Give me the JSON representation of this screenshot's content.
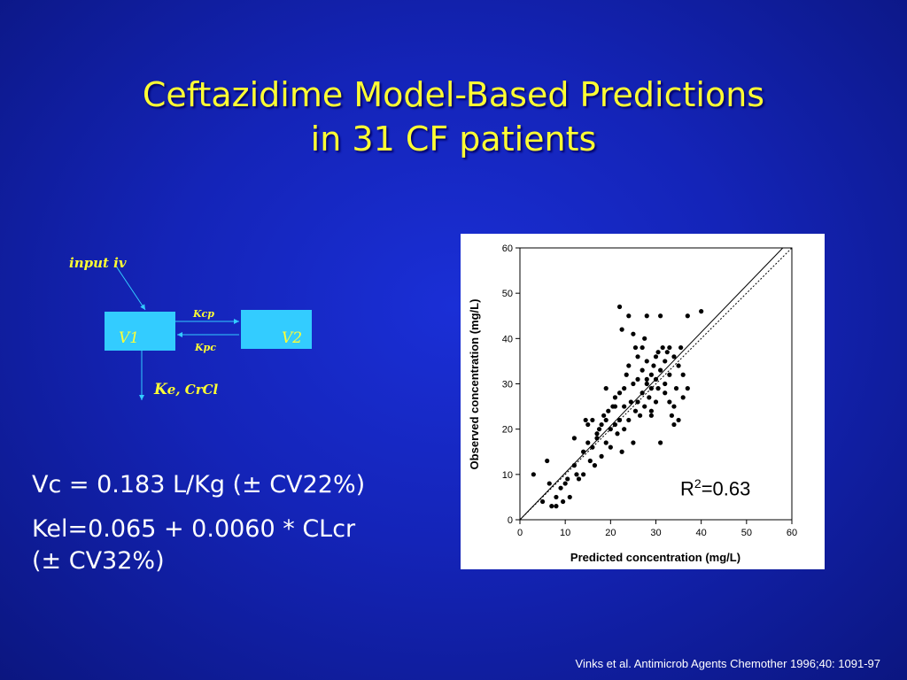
{
  "slide": {
    "title_line1": "Ceftazidime Model-Based Predictions",
    "title_line2": "in 31 CF patients",
    "citation": "Vinks et al. Antimicrob Agents Chemother 1996;40: 1091-97"
  },
  "diagram": {
    "input_label": "input iv",
    "compartment1": "V1",
    "compartment2": "V2",
    "rate_kcp": "Kcp",
    "rate_kpc": "Kpc",
    "elim_k": "K",
    "elim_rest": "e, CrCl",
    "box_color": "#33ccff",
    "text_color": "#ffff33"
  },
  "equations": {
    "vc": "Vc = 0.183 L/Kg (± CV22%)",
    "kel_line1": "Kel=0.065 + 0.0060 * CLcr",
    "kel_line2": "(± CV32%)"
  },
  "chart_data": {
    "type": "scatter",
    "xlabel": "Predicted concentration (mg/L)",
    "ylabel": "Observed concentration (mg/L)",
    "xlim": [
      0,
      60
    ],
    "ylim": [
      0,
      60
    ],
    "xticks": [
      0,
      10,
      20,
      30,
      40,
      50,
      60
    ],
    "yticks": [
      0,
      10,
      20,
      30,
      40,
      50,
      60
    ],
    "annotation_r": "R",
    "annotation_sup": "2",
    "annotation_val": "=0.63",
    "lines": [
      {
        "style": "solid",
        "points": [
          [
            0,
            0
          ],
          [
            58,
            60
          ]
        ]
      },
      {
        "style": "dotted",
        "points": [
          [
            0,
            0
          ],
          [
            60,
            60
          ]
        ]
      }
    ],
    "points": [
      [
        3,
        10
      ],
      [
        5,
        4
      ],
      [
        6,
        13
      ],
      [
        6.5,
        8
      ],
      [
        7,
        3
      ],
      [
        8,
        3
      ],
      [
        8,
        5
      ],
      [
        9,
        7
      ],
      [
        9.5,
        4
      ],
      [
        10,
        8
      ],
      [
        10.5,
        9
      ],
      [
        11,
        5
      ],
      [
        12,
        18
      ],
      [
        12,
        12
      ],
      [
        12.5,
        10
      ],
      [
        13,
        9
      ],
      [
        14,
        15
      ],
      [
        14,
        10
      ],
      [
        14.5,
        22
      ],
      [
        15,
        17
      ],
      [
        15.5,
        13
      ],
      [
        16,
        16
      ],
      [
        16,
        22
      ],
      [
        16.5,
        12
      ],
      [
        17,
        18
      ],
      [
        17.5,
        20
      ],
      [
        18,
        14
      ],
      [
        18,
        21
      ],
      [
        18.5,
        23
      ],
      [
        19,
        17
      ],
      [
        19,
        22
      ],
      [
        19.5,
        24
      ],
      [
        20,
        20
      ],
      [
        20,
        16
      ],
      [
        20.5,
        25
      ],
      [
        21,
        21
      ],
      [
        21,
        27
      ],
      [
        21.5,
        19
      ],
      [
        22,
        28
      ],
      [
        22,
        22
      ],
      [
        22.5,
        15
      ],
      [
        22.5,
        42
      ],
      [
        22,
        47
      ],
      [
        23,
        20
      ],
      [
        23,
        25
      ],
      [
        23,
        29
      ],
      [
        23.5,
        32
      ],
      [
        24,
        34
      ],
      [
        24,
        22
      ],
      [
        24,
        45
      ],
      [
        24.5,
        26
      ],
      [
        25,
        30
      ],
      [
        25,
        17
      ],
      [
        25.5,
        24
      ],
      [
        25.5,
        38
      ],
      [
        26,
        26
      ],
      [
        26,
        31
      ],
      [
        26.5,
        23
      ],
      [
        27,
        28
      ],
      [
        27,
        33
      ],
      [
        27,
        38
      ],
      [
        27.5,
        40
      ],
      [
        27.5,
        25
      ],
      [
        28,
        30
      ],
      [
        28,
        35
      ],
      [
        28,
        45
      ],
      [
        28.5,
        27
      ],
      [
        29,
        32
      ],
      [
        29,
        23
      ],
      [
        29,
        29
      ],
      [
        29.5,
        34
      ],
      [
        30,
        31
      ],
      [
        30,
        26
      ],
      [
        30,
        36
      ],
      [
        30.5,
        29
      ],
      [
        31,
        33
      ],
      [
        31,
        45
      ],
      [
        31,
        17
      ],
      [
        31.5,
        38
      ],
      [
        32,
        30
      ],
      [
        32,
        35
      ],
      [
        32,
        28
      ],
      [
        32.5,
        37
      ],
      [
        33,
        32
      ],
      [
        33,
        26
      ],
      [
        33,
        38
      ],
      [
        33.5,
        23
      ],
      [
        34,
        36
      ],
      [
        34,
        21
      ],
      [
        34.5,
        29
      ],
      [
        35,
        34
      ],
      [
        35,
        22
      ],
      [
        35.5,
        38
      ],
      [
        36,
        27
      ],
      [
        36,
        32
      ],
      [
        37,
        45
      ],
      [
        37,
        29
      ],
      [
        40,
        46
      ],
      [
        25,
        41
      ],
      [
        26,
        36
      ],
      [
        29,
        24
      ],
      [
        34,
        25
      ],
      [
        30.5,
        37
      ],
      [
        28,
        31
      ],
      [
        19,
        29
      ],
      [
        15,
        21
      ],
      [
        17,
        19
      ],
      [
        21,
        25
      ]
    ]
  }
}
